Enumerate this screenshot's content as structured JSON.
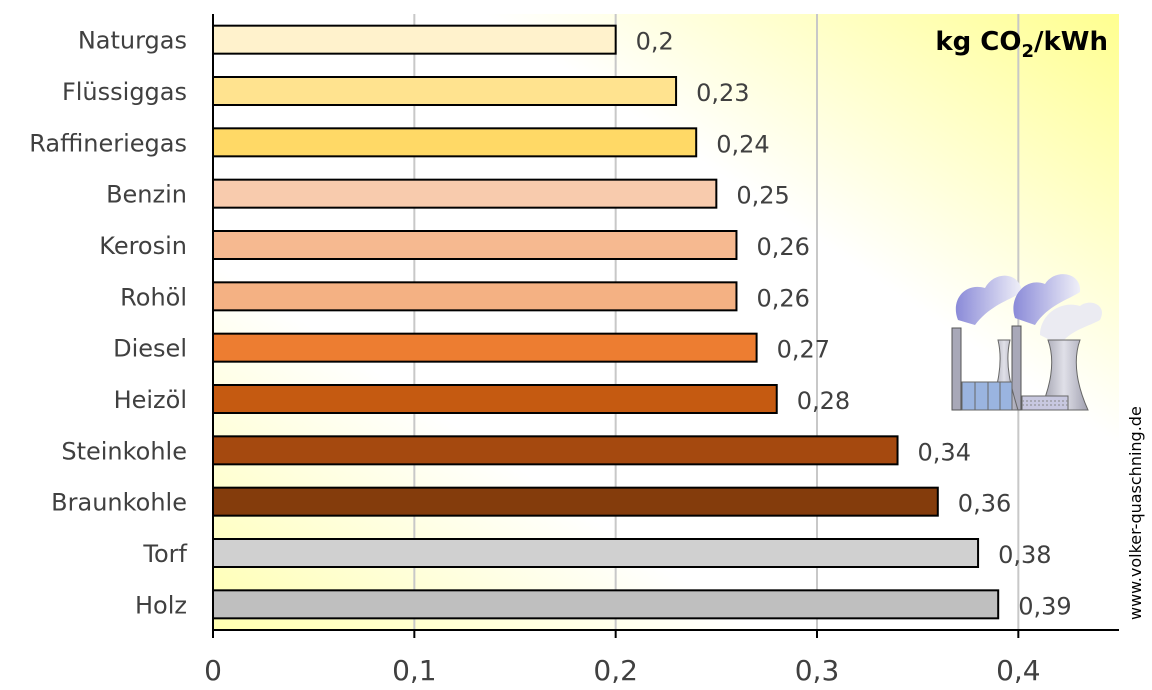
{
  "chart_data": {
    "type": "bar",
    "orientation": "horizontal",
    "categories": [
      "Naturgas",
      "Flüssiggas",
      "Raffineriegas",
      "Benzin",
      "Kerosin",
      "Rohöl",
      "Diesel",
      "Heizöl",
      "Steinkohle",
      "Braunkohle",
      "Torf",
      "Holz"
    ],
    "values": [
      0.2,
      0.23,
      0.24,
      0.25,
      0.26,
      0.26,
      0.27,
      0.28,
      0.34,
      0.36,
      0.38,
      0.39
    ],
    "value_labels": [
      "0,2",
      "0,23",
      "0,24",
      "0,25",
      "0,26",
      "0,26",
      "0,27",
      "0,28",
      "0,34",
      "0,36",
      "0,38",
      "0,39"
    ],
    "bar_colors": [
      "#fff2cc",
      "#ffe38f",
      "#ffd966",
      "#f8cbad",
      "#f6b990",
      "#f4b183",
      "#ed7d31",
      "#c55a11",
      "#a5490f",
      "#843c0c",
      "#d0d0d0",
      "#bfbfbf"
    ],
    "unit_label": {
      "prefix": "kg CO",
      "sub": "2",
      "suffix": "/kWh"
    },
    "xlim": [
      0,
      0.45
    ],
    "xticks": [
      0,
      0.1,
      0.2,
      0.3,
      0.4
    ],
    "xtick_labels": [
      "0",
      "0,1",
      "0,2",
      "0,3",
      "0,4"
    ],
    "grid": true,
    "credit": "www.volker-quaschning.de",
    "illustration_icon": "power-plant-icon"
  }
}
